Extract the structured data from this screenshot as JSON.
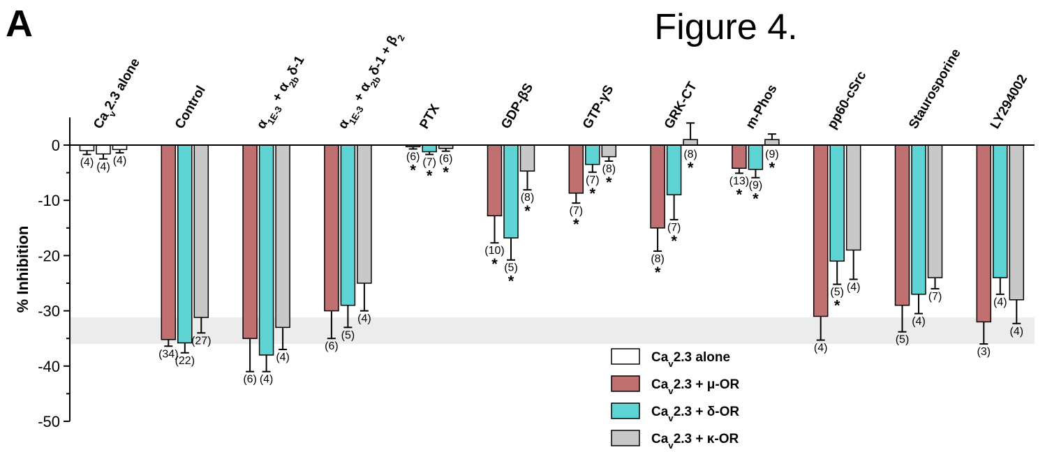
{
  "chart_data": {
    "type": "bar",
    "panel_label": "A",
    "title": "Figure 4.",
    "ylabel": "% Inhibition",
    "ylim": [
      -50,
      5
    ],
    "yticks": [
      0,
      -10,
      -20,
      -30,
      -40,
      -50
    ],
    "minor_yticks": [
      -5,
      -15,
      -25,
      -35,
      -45
    ],
    "band": [
      -36,
      -31.2
    ],
    "band_color": "#ececec",
    "categories": [
      [
        {
          "text": "Ca"
        },
        {
          "text": "v",
          "sub": true
        },
        {
          "text": "2.3 alone"
        }
      ],
      "Control",
      [
        {
          "text": "α"
        },
        {
          "text": "1E-3",
          "sub": true
        },
        {
          "text": " + α"
        },
        {
          "text": "2b",
          "sub": true
        },
        {
          "text": "δ-1"
        }
      ],
      [
        {
          "text": "α"
        },
        {
          "text": "1E-3",
          "sub": true
        },
        {
          "text": " + α"
        },
        {
          "text": "2b",
          "sub": true
        },
        {
          "text": "δ-1 + β"
        },
        {
          "text": "2",
          "sub": true
        }
      ],
      "PTX",
      "GDP-βS",
      "GTP-γS",
      "GRK-CT",
      "m-Phos",
      "pp60-cSrc",
      "Staurosporine",
      "LY294002"
    ],
    "series": [
      {
        "name": [
          {
            "text": "Ca"
          },
          {
            "text": "v",
            "sub": true
          },
          {
            "text": "2.3 + μ-OR"
          }
        ],
        "colors": [
          "#ffffff",
          "#c07070",
          "#c07070",
          "#c07070",
          "#c07070",
          "#c07070",
          "#c07070",
          "#c07070",
          "#c07070",
          "#c07070",
          "#c07070",
          "#c07070"
        ],
        "values": [
          -1.0,
          -35.2,
          -35,
          -30,
          -0.3,
          -12.8,
          -8.7,
          -15,
          -4.2,
          -31,
          -29,
          -32
        ],
        "errors": [
          0.7,
          1.2,
          6,
          5,
          0.4,
          4.9,
          1.8,
          4.2,
          0.9,
          4.3,
          4.8,
          4
        ],
        "n_labels": [
          "(4)",
          "(34)",
          "(6)",
          "(6)",
          "(6)",
          "(10)",
          "(7)",
          "(8)",
          "(13)",
          "(4)",
          "(5)",
          "(3)"
        ],
        "markers": [
          null,
          null,
          null,
          null,
          "*",
          "*",
          "*",
          "*",
          "*",
          null,
          null,
          null
        ]
      },
      {
        "name": [
          {
            "text": "Ca"
          },
          {
            "text": "v",
            "sub": true
          },
          {
            "text": "2.3 + δ-OR"
          }
        ],
        "colors": [
          "#ffffff",
          "#5dd3d3",
          "#5dd3d3",
          "#5dd3d3",
          "#5dd3d3",
          "#5dd3d3",
          "#5dd3d3",
          "#5dd3d3",
          "#5dd3d3",
          "#5dd3d3",
          "#5dd3d3",
          "#5dd3d3"
        ],
        "values": [
          -1.6,
          -35.8,
          -38,
          -29,
          -1.2,
          -16.8,
          -3.5,
          -9,
          -4.4,
          -21,
          -27,
          -24
        ],
        "errors": [
          0.9,
          1.8,
          3,
          4,
          0.5,
          4,
          1.4,
          4.5,
          1.5,
          4.2,
          3.5,
          3
        ],
        "n_labels": [
          "(4)",
          "(22)",
          "(4)",
          "(5)",
          "(7)",
          "(5)",
          "(7)",
          "(7)",
          "(9)",
          "(5)",
          "(4)",
          "(4)"
        ],
        "markers": [
          null,
          null,
          null,
          null,
          "*",
          "*",
          "*",
          "*",
          "*",
          "*",
          null,
          null
        ]
      },
      {
        "name": [
          {
            "text": "Ca"
          },
          {
            "text": "v",
            "sub": true
          },
          {
            "text": "2.3 + κ-OR"
          }
        ],
        "colors": [
          "#ffffff",
          "#c8c8c8",
          "#c8c8c8",
          "#c8c8c8",
          "#c8c8c8",
          "#c8c8c8",
          "#c8c8c8",
          "#c8c8c8",
          "#c8c8c8",
          "#c8c8c8",
          "#c8c8c8",
          "#c8c8c8"
        ],
        "values": [
          -0.8,
          -31.2,
          -33,
          -25,
          -0.6,
          -4.7,
          -2.1,
          1,
          1,
          -19,
          -24,
          -28
        ],
        "errors": [
          0.6,
          2.8,
          4,
          5,
          0.5,
          3.4,
          0.8,
          3,
          1,
          5.3,
          2,
          4.3
        ],
        "n_labels": [
          "(4)",
          "(27)",
          "(4)",
          "(4)",
          "(6)",
          "(8)",
          "(8)",
          "(8)",
          "(9)",
          "(4)",
          "(7)",
          "(4)"
        ],
        "markers": [
          null,
          null,
          null,
          null,
          "*",
          "*",
          "*",
          "*",
          "*",
          null,
          null,
          null
        ]
      }
    ],
    "legend": [
      {
        "name": [
          {
            "text": "Ca"
          },
          {
            "text": "v",
            "sub": true
          },
          {
            "text": "2.3 alone"
          }
        ],
        "color": "#ffffff"
      },
      {
        "name": [
          {
            "text": "Ca"
          },
          {
            "text": "v",
            "sub": true
          },
          {
            "text": "2.3 + μ-OR"
          }
        ],
        "color": "#c07070"
      },
      {
        "name": [
          {
            "text": "Ca"
          },
          {
            "text": "v",
            "sub": true
          },
          {
            "text": "2.3 + δ-OR"
          }
        ],
        "color": "#5dd3d3"
      },
      {
        "name": [
          {
            "text": "Ca"
          },
          {
            "text": "v",
            "sub": true
          },
          {
            "text": "2.3 + κ-OR"
          }
        ],
        "color": "#c8c8c8"
      }
    ]
  }
}
